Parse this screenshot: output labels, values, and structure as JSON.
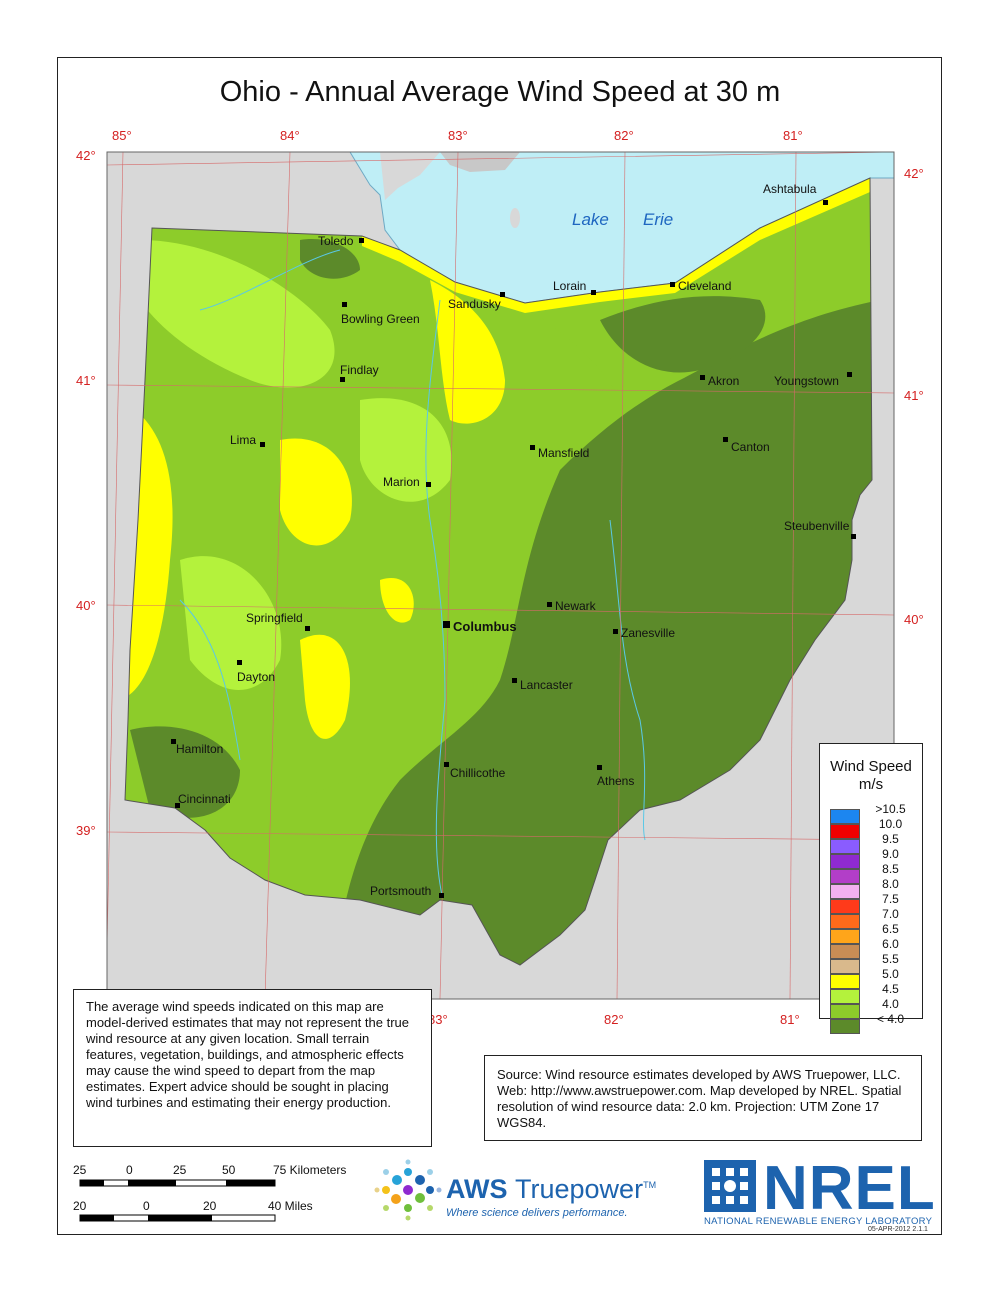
{
  "title": "Ohio - Annual Average Wind Speed at 30 m",
  "graticule": {
    "top_longitudes": [
      "85°",
      "84°",
      "83°",
      "82°",
      "81°"
    ],
    "bottom_longitudes": [
      "83°",
      "82°",
      "81°"
    ],
    "left_latitudes": [
      "42°",
      "41°",
      "40°",
      "39°"
    ],
    "right_latitudes": [
      "42°",
      "41°",
      "40°"
    ]
  },
  "lake_label": [
    "Lake",
    "Erie"
  ],
  "cities": {
    "ashtabula": "Ashtabula",
    "toledo": "Toledo",
    "lorain": "Lorain",
    "cleveland": "Cleveland",
    "sandusky": "Sandusky",
    "bowling_green": "Bowling Green",
    "findlay": "Findlay",
    "akron": "Akron",
    "youngstown": "Youngstown",
    "lima": "Lima",
    "mansfield": "Mansfield",
    "canton": "Canton",
    "marion": "Marion",
    "steubenville": "Steubenville",
    "newark": "Newark",
    "columbus": "Columbus",
    "springfield": "Springfield",
    "zanesville": "Zanesville",
    "dayton": "Dayton",
    "lancaster": "Lancaster",
    "hamilton": "Hamilton",
    "chillicothe": "Chillicothe",
    "athens": "Athens",
    "cincinnati": "Cincinnati",
    "portsmouth": "Portsmouth"
  },
  "legend": {
    "title": "Wind Speed",
    "unit": "m/s",
    "entries": [
      {
        "label": ">10.5",
        "color": "#1c86f0"
      },
      {
        "label": "10.0",
        "color": "#f00000"
      },
      {
        "label": "9.5",
        "color": "#8a5cff"
      },
      {
        "label": "9.0",
        "color": "#8f2ad0"
      },
      {
        "label": "8.5",
        "color": "#b23ec8"
      },
      {
        "label": "8.0",
        "color": "#f2b0f0"
      },
      {
        "label": "7.5",
        "color": "#ff3a1a"
      },
      {
        "label": "7.0",
        "color": "#ff6a1a"
      },
      {
        "label": "6.5",
        "color": "#ffa51a"
      },
      {
        "label": "6.0",
        "color": "#c88d55"
      },
      {
        "label": "5.5",
        "color": "#d9b98c"
      },
      {
        "label": "5.0",
        "color": "#ffff00"
      },
      {
        "label": "4.5",
        "color": "#b4f23c"
      },
      {
        "label": "4.0",
        "color": "#8dcc2a"
      },
      {
        "label": "< 4.0",
        "color": "#5c8a2a"
      }
    ]
  },
  "disclaimer": "The average wind speeds indicated on this map are model-derived estimates that may not represent the true wind resource at any given location. Small terrain features, vegetation, buildings, and atmospheric effects may cause the wind speed to depart from the map estimates. Expert advice should be sought in placing wind turbines and estimating their energy production.",
  "source": "Source: Wind resource estimates developed by AWS Truepower, LLC.  Web: http://www.awstruepower.com.  Map developed by NREL.  Spatial resolution of wind resource data:  2.0 km. Projection:  UTM Zone 17 WGS84.",
  "scale": {
    "km_labels": [
      "25",
      "0",
      "25",
      "50",
      "75 Kilometers"
    ],
    "mi_labels": [
      "20",
      "0",
      "20",
      "40 Miles"
    ]
  },
  "logos": {
    "aws_name_a": "AWS ",
    "aws_name_b": "Truepower",
    "aws_tm": "TM",
    "aws_tagline": "Where science delivers performance.",
    "nrel": "NREL",
    "nrel_sub": "NATIONAL RENEWABLE ENERGY LABORATORY"
  },
  "version": "05-APR-2012 2.1.1",
  "colors": {
    "lake": "#bfeef6",
    "outside": "#d8d8d8",
    "graticule": "#d66a6a",
    "text_red": "#d42020",
    "brand_blue": "#1d63ae"
  }
}
